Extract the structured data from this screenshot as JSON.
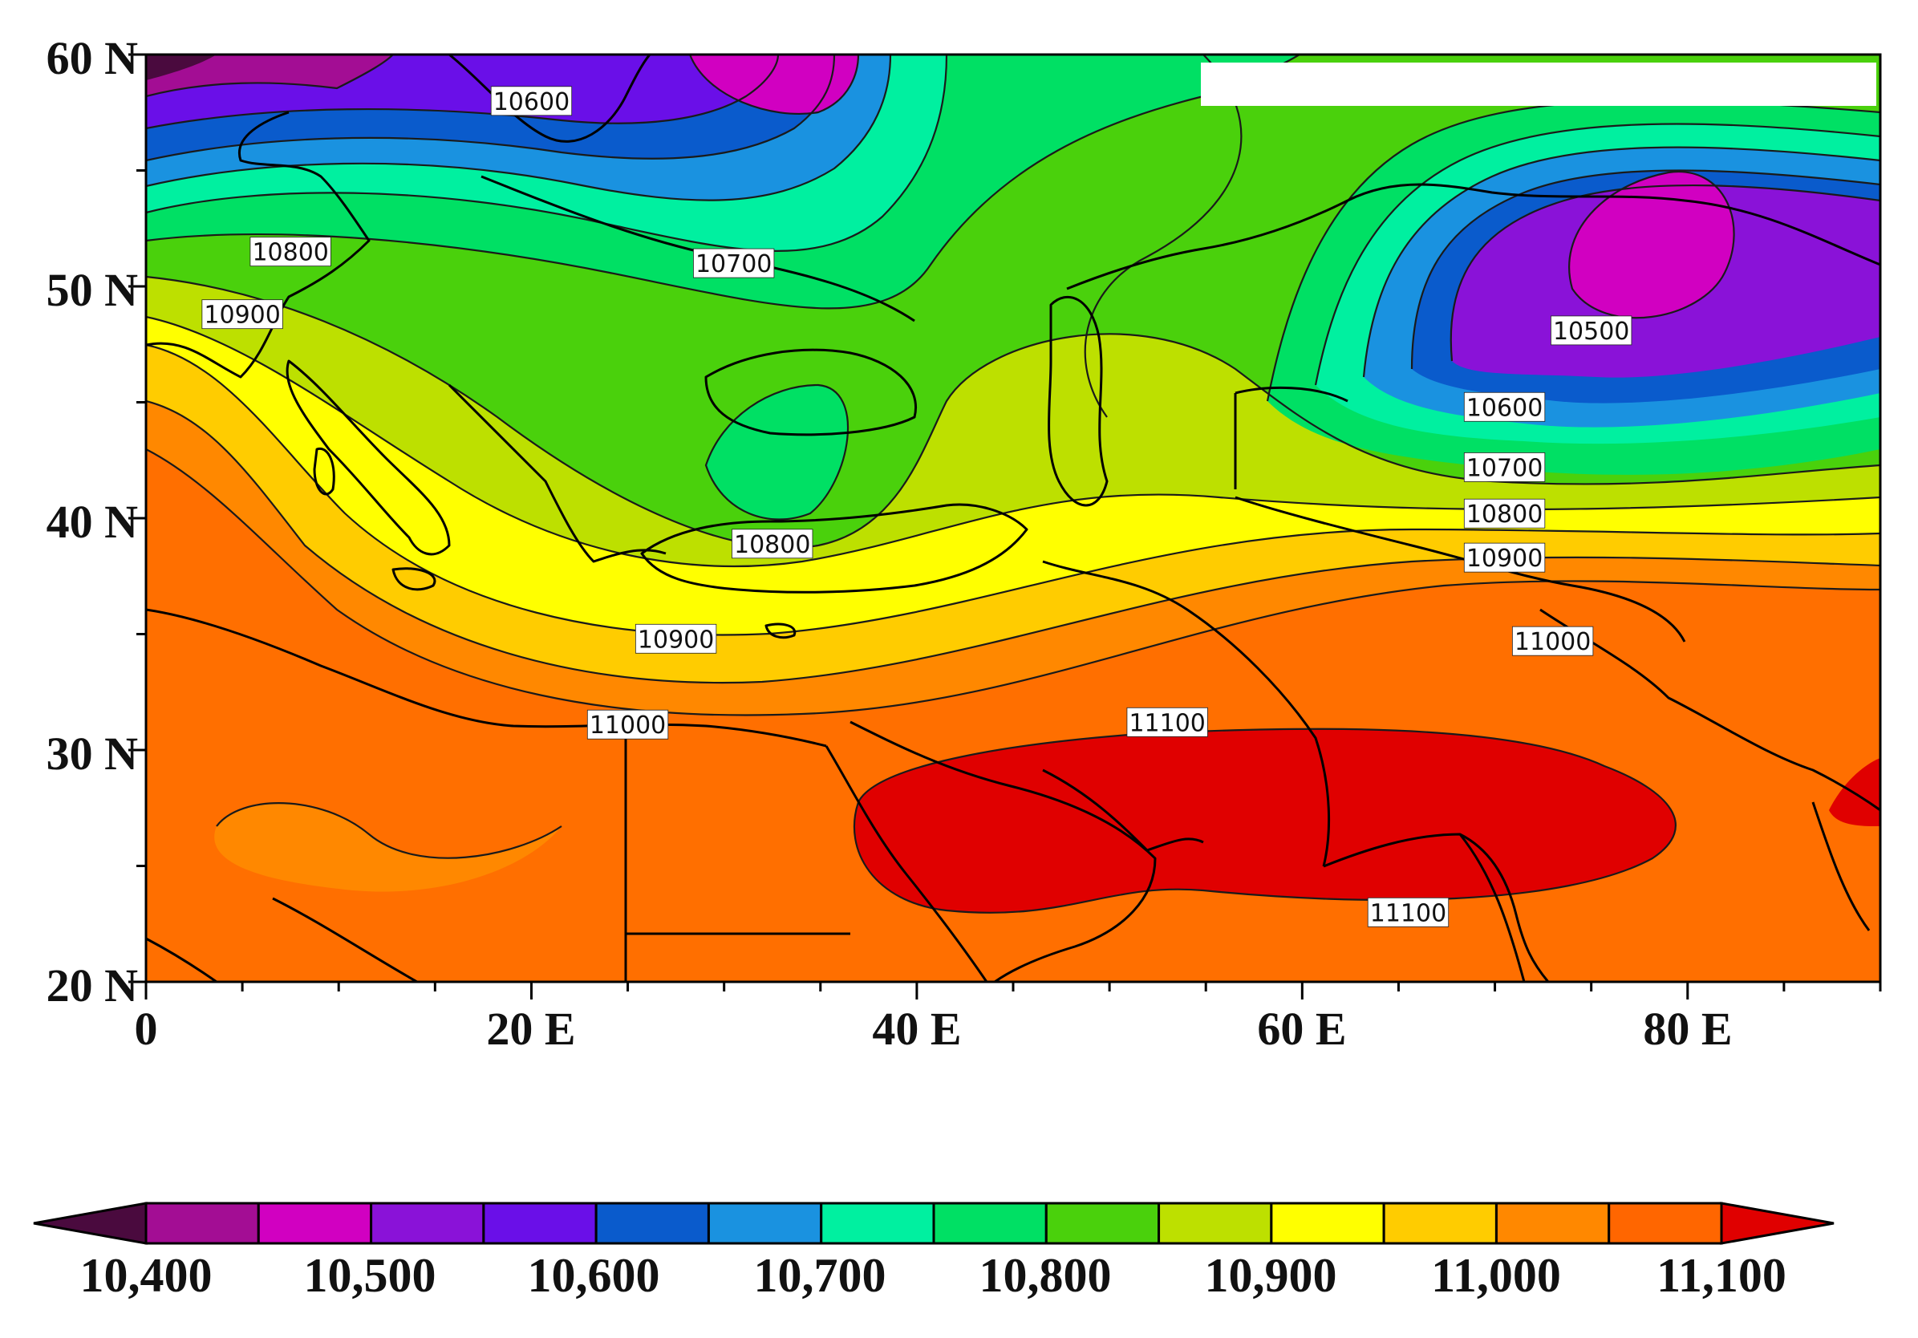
{
  "axes": {
    "lat_ticks": [
      "60 N",
      "50 N",
      "40 N",
      "30 N",
      "20 N"
    ],
    "lon_ticks": [
      "0",
      "20 E",
      "40 E",
      "60 E",
      "80 E"
    ],
    "lon_range": [
      0,
      90
    ],
    "lat_range": [
      20,
      60
    ]
  },
  "contour_labels": [
    {
      "text": "10600",
      "lon": 20.0,
      "lat": 58.0
    },
    {
      "text": "10800",
      "lon": 7.5,
      "lat": 51.5
    },
    {
      "text": "10900",
      "lon": 5.0,
      "lat": 48.8
    },
    {
      "text": "10700",
      "lon": 30.5,
      "lat": 51.0
    },
    {
      "text": "10800",
      "lon": 32.5,
      "lat": 38.9
    },
    {
      "text": "10900",
      "lon": 27.5,
      "lat": 34.8
    },
    {
      "text": "11000",
      "lon": 25.0,
      "lat": 31.1
    },
    {
      "text": "11100",
      "lon": 53.0,
      "lat": 31.2
    },
    {
      "text": "10500",
      "lon": 75.0,
      "lat": 48.1
    },
    {
      "text": "10600",
      "lon": 70.5,
      "lat": 44.8
    },
    {
      "text": "10700",
      "lon": 70.5,
      "lat": 42.2
    },
    {
      "text": "10800",
      "lon": 70.5,
      "lat": 40.2
    },
    {
      "text": "10900",
      "lon": 70.5,
      "lat": 38.3
    },
    {
      "text": "11000",
      "lon": 73.0,
      "lat": 34.7
    },
    {
      "text": "11100",
      "lon": 65.5,
      "lat": 23.0
    }
  ],
  "colorbar": {
    "labels": [
      "10,400",
      "10,500",
      "10,600",
      "10,700",
      "10,800",
      "10,900",
      "11,000",
      "11,100"
    ],
    "colors": [
      "#4a0a3e",
      "#a30d94",
      "#d100c1",
      "#8a12d8",
      "#6a0fe8",
      "#0a5bcc",
      "#1a92e0",
      "#00f0a0",
      "#00e064",
      "#4ad10c",
      "#bde000",
      "#ffff00",
      "#ffcc00",
      "#ff8800",
      "#ff6600",
      "#e00000"
    ]
  },
  "colors": {
    "lowest": "#4a0a3e",
    "highest": "#e00000"
  }
}
